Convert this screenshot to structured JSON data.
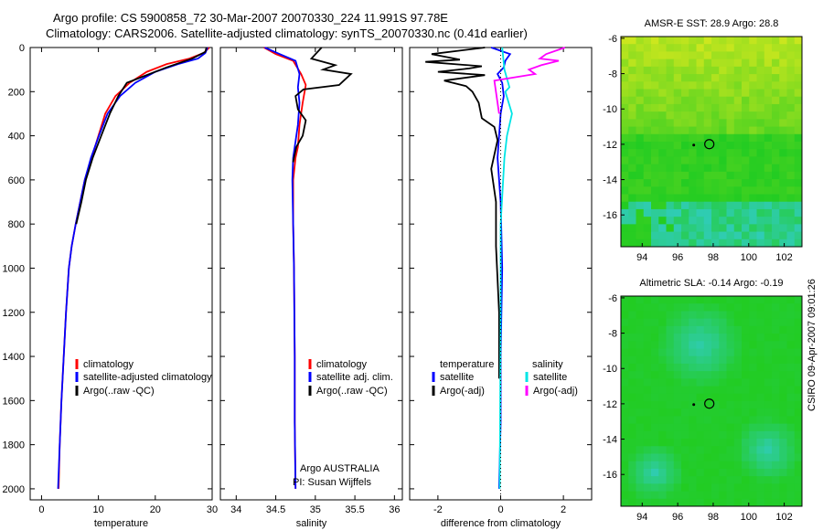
{
  "header": {
    "title_line1": "Argo profile: CS 5900858_72 30-Mar-2007 20070330_224 11.991S 97.78E",
    "title_line2": "Climatology: CARS2006. Satellite-adjusted climatology: synTS_20070330.nc (0.41d earlier)"
  },
  "timestamp": "CSIRO 09-Apr-2007 09:01:26",
  "colors": {
    "climatology": "#ff0000",
    "satellite": "#0000ff",
    "argo": "#000000",
    "sal_satellite": "#00e5e5",
    "sal_argo": "#ff00ff",
    "map_green": "#22cc22",
    "map_yellow": "#c8e61e",
    "map_cyan": "#33ccdd"
  },
  "chart_data": [
    {
      "type": "line",
      "id": "temperature-panel",
      "title": "",
      "xlabel": "temperature",
      "ylabel": "",
      "xlim": [
        -2,
        30
      ],
      "ylim": [
        2050,
        0
      ],
      "xticks": [
        "0",
        "10",
        "20",
        "30"
      ],
      "yticks": [
        "0",
        "200",
        "400",
        "600",
        "800",
        "1000",
        "1200",
        "1400",
        "1600",
        "1800",
        "2000"
      ],
      "legend": [
        "climatology",
        "satellite-adjusted climatology",
        "Argo(..raw -QC)"
      ],
      "series": [
        {
          "name": "climatology",
          "color": "red",
          "x": [
            29.5,
            28.5,
            26,
            22,
            18.5,
            15.5,
            13,
            11.2,
            10,
            8.8,
            7.6,
            6.8,
            6,
            5.3,
            4.8,
            4.3,
            3.9,
            3.5,
            3.2,
            3
          ],
          "y": [
            0,
            25,
            50,
            75,
            110,
            160,
            220,
            300,
            400,
            500,
            600,
            700,
            800,
            900,
            1000,
            1200,
            1400,
            1600,
            1800,
            2000
          ]
        },
        {
          "name": "satellite-adjusted climatology",
          "color": "blue",
          "x": [
            29.2,
            28.8,
            27.5,
            24,
            20,
            16.5,
            13.8,
            11.6,
            10.1,
            8.7,
            7.6,
            6.8,
            6,
            5.3,
            4.8,
            4.3,
            3.9,
            3.5,
            3.2,
            2.9
          ],
          "y": [
            0,
            25,
            50,
            75,
            110,
            160,
            220,
            300,
            400,
            500,
            600,
            700,
            800,
            900,
            1000,
            1200,
            1400,
            1600,
            1800,
            2000
          ]
        },
        {
          "name": "Argo(..raw -QC)",
          "color": "black",
          "x": [
            29,
            28.8,
            26.5,
            22,
            18,
            15,
            13.5,
            12,
            10.5,
            9,
            7.8,
            7,
            6.1
          ],
          "y": [
            0,
            20,
            50,
            90,
            130,
            160,
            220,
            300,
            400,
            500,
            600,
            700,
            800
          ]
        }
      ]
    },
    {
      "type": "line",
      "id": "salinity-panel",
      "title": "",
      "xlabel": "salinity",
      "ylabel": "",
      "xlim": [
        33.8,
        36.1
      ],
      "ylim": [
        2050,
        0
      ],
      "xticks": [
        "34",
        "34.5",
        "35",
        "35.5",
        "36"
      ],
      "legend": [
        "climatology",
        "satellite adj. clim.",
        "Argo(..raw -QC)"
      ],
      "annotation": [
        "Argo AUSTRALIA",
        "PI: Susan Wijffels"
      ],
      "series": [
        {
          "name": "climatology",
          "color": "red",
          "x": [
            34.35,
            34.5,
            34.72,
            34.82,
            34.88,
            34.84,
            34.8,
            34.78,
            34.75,
            34.72,
            34.72,
            34.73,
            34.74,
            34.74,
            34.75
          ],
          "y": [
            0,
            30,
            60,
            120,
            170,
            250,
            350,
            450,
            500,
            600,
            800,
            1000,
            1400,
            1700,
            2000
          ]
        },
        {
          "name": "satellite adj. clim.",
          "color": "blue",
          "x": [
            34.36,
            34.55,
            34.75,
            34.8,
            34.78,
            34.8,
            34.78,
            34.74,
            34.72,
            34.71,
            34.72,
            34.73,
            34.74,
            34.74,
            34.75
          ],
          "y": [
            0,
            30,
            60,
            120,
            180,
            250,
            350,
            450,
            500,
            600,
            800,
            1000,
            1400,
            1700,
            2000
          ]
        },
        {
          "name": "Argo(..raw -QC)",
          "color": "black",
          "x": [
            35.08,
            34.95,
            35.25,
            35.1,
            35.45,
            35.3,
            34.85,
            34.75,
            34.78,
            34.88,
            34.84,
            34.76,
            34.73,
            34.72
          ],
          "y": [
            0,
            50,
            80,
            100,
            120,
            170,
            190,
            220,
            280,
            330,
            400,
            450,
            500,
            520
          ]
        }
      ]
    },
    {
      "type": "line",
      "id": "difference-panel",
      "title": "",
      "xlabel": "difference from climatology",
      "ylabel": "",
      "xlim": [
        -2.9,
        2.9
      ],
      "ylim": [
        2050,
        0
      ],
      "xticks": [
        "-2",
        "0",
        "2"
      ],
      "legend": [
        "temperature",
        "satellite",
        "Argo(-adj)",
        "salinity",
        "satellite",
        "Argo(-adj)"
      ],
      "series": [
        {
          "name": "temperature satellite",
          "color": "blue",
          "x": [
            -0.3,
            0.3,
            0.15,
            0.1,
            -0.1,
            0.05,
            0.1,
            0,
            -0.05,
            -0.1,
            0,
            0.05,
            0,
            0,
            -0.05
          ],
          "y": [
            0,
            30,
            60,
            90,
            120,
            160,
            220,
            300,
            400,
            500,
            700,
            1000,
            1400,
            1700,
            2000
          ]
        },
        {
          "name": "temperature Argo(-adj)",
          "color": "black",
          "x": [
            -0.5,
            -2.2,
            -1.3,
            -2.4,
            -0.6,
            -1.0,
            -2.0,
            -0.5,
            -1.8,
            -1.1,
            -0.9,
            -0.7,
            -0.6,
            -0.2,
            -0.1,
            -0.3,
            -0.15,
            -0.15,
            -0.05,
            -0.05
          ],
          "y": [
            0,
            30,
            55,
            65,
            85,
            95,
            110,
            125,
            150,
            175,
            200,
            250,
            320,
            360,
            420,
            550,
            700,
            900,
            1200,
            1500
          ]
        },
        {
          "name": "salinity satellite",
          "color": "cyan",
          "x": [
            0.05,
            0.12,
            0.28,
            0.15,
            0.36,
            0.2,
            0.12,
            0.0,
            0.0,
            -0.03
          ],
          "y": [
            0,
            100,
            180,
            200,
            300,
            400,
            500,
            800,
            1200,
            2000
          ]
        },
        {
          "name": "salinity Argo(-adj)",
          "color": "magenta",
          "x": [
            2.05,
            1.45,
            1.25,
            1.85,
            1.3,
            0.9,
            1.1,
            -0.2,
            -0.05
          ],
          "y": [
            0,
            30,
            50,
            60,
            80,
            100,
            120,
            150,
            300
          ]
        }
      ]
    },
    {
      "type": "heatmap",
      "id": "sst-map",
      "title": "AMSR-E SST: 28.9 Argo: 28.8",
      "xticks": [
        "94",
        "96",
        "98",
        "100",
        "102"
      ],
      "yticks": [
        "-6",
        "-8",
        "-10",
        "-12",
        "-14",
        "-16"
      ],
      "xlim": [
        92.8,
        103
      ],
      "ylim": [
        -17.8,
        -5.9
      ],
      "marker": {
        "lon": 97.78,
        "lat": -11.991
      }
    },
    {
      "type": "heatmap",
      "id": "sla-map",
      "title": "Altimetric SLA: -0.14 Argo: -0.19",
      "xticks": [
        "94",
        "96",
        "98",
        "100",
        "102"
      ],
      "yticks": [
        "-6",
        "-8",
        "-10",
        "-12",
        "-14",
        "-16"
      ],
      "xlim": [
        92.8,
        103
      ],
      "ylim": [
        -17.8,
        -5.9
      ],
      "marker": {
        "lon": 97.78,
        "lat": -11.991
      }
    }
  ]
}
